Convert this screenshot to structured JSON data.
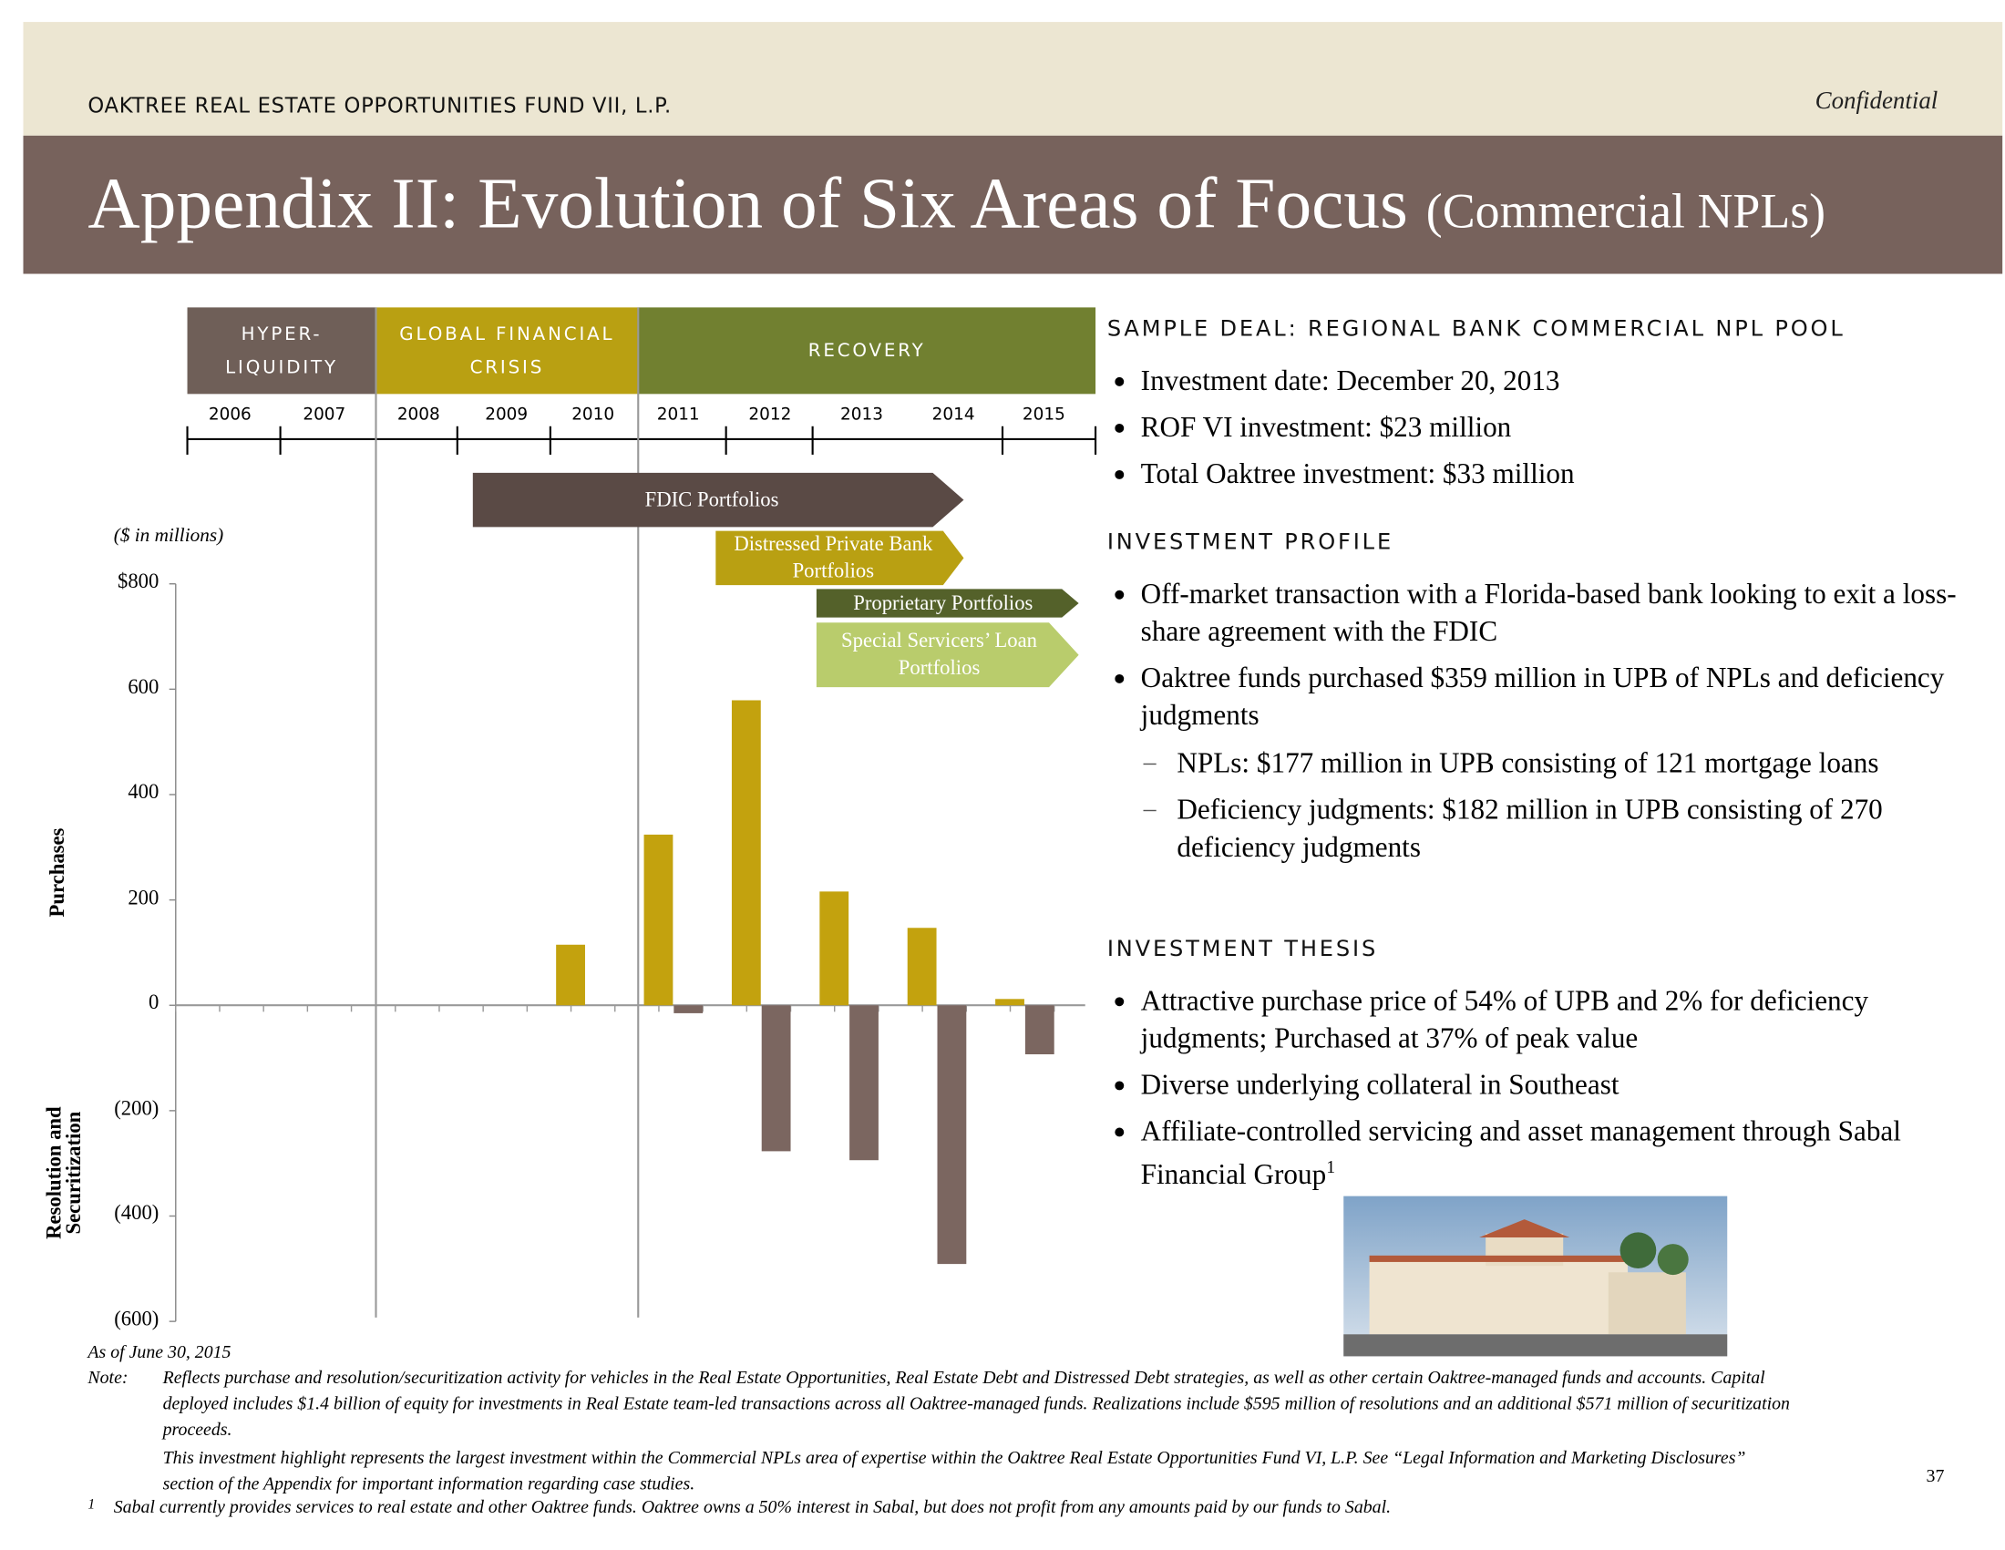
{
  "header": {
    "fund": "OAKTREE REAL ESTATE OPPORTUNITIES FUND VII, L.P.",
    "confidential": "Confidential"
  },
  "title": {
    "main": "Appendix II: Evolution of Six Areas of Focus",
    "sub": "(Commercial NPLs)"
  },
  "timeline": {
    "eras": [
      "HYPER-LIQUIDITY",
      "GLOBAL FINANCIAL CRISIS",
      "RECOVERY"
    ],
    "programs": [
      "FDIC Portfolios",
      "Distressed Private Bank Portfolios",
      "Proprietary Portfolios",
      "Special Servicers’ Loan Portfolios"
    ]
  },
  "chart_data": {
    "type": "bar",
    "unit_label": "($ in millions)",
    "categories": [
      "2006",
      "2007",
      "2008",
      "2009",
      "2010",
      "2011",
      "2012",
      "2013",
      "2014",
      "2015"
    ],
    "series": [
      {
        "name": "Purchases",
        "color": "#c3a20e",
        "values": [
          null,
          null,
          null,
          null,
          115,
          324,
          579,
          216,
          147,
          12
        ]
      },
      {
        "name": "Resolution and Securitization",
        "color": "#7b6660",
        "values": [
          null,
          null,
          null,
          null,
          null,
          -15,
          -277,
          -294,
          -491,
          -93
        ]
      }
    ],
    "ylim": [
      -600,
      800
    ],
    "yticks": [
      {
        "value": 800,
        "label": "$800"
      },
      600,
      400,
      200,
      0,
      {
        "value": -200,
        "label": "(200)"
      },
      {
        "value": -400,
        "label": "(400)"
      },
      {
        "value": -600,
        "label": "(600)"
      }
    ]
  },
  "sample_deal": {
    "heading": "SAMPLE DEAL: REGIONAL BANK COMMERCIAL NPL POOL",
    "bullets": [
      "Investment date: December 20, 2013",
      "ROF VI investment: $23 million",
      "Total Oaktree investment: $33 million"
    ]
  },
  "investment_profile": {
    "heading": "INVESTMENT PROFILE",
    "bullets": [
      {
        "text": "Off-market transaction with a Florida-based bank looking to exit a loss-share agreement with the FDIC"
      },
      {
        "text": "Oaktree funds purchased $359 million in UPB of NPLs and deficiency judgments",
        "sub": [
          "NPLs: $177 million in UPB consisting of 121 mortgage loans",
          "Deficiency judgments: $182 million in UPB consisting of 270 deficiency judgments"
        ]
      }
    ]
  },
  "investment_thesis": {
    "heading": "INVESTMENT THESIS",
    "bullets": [
      "Attractive purchase price of 54% of UPB and 2% for deficiency judgments; Purchased at 37% of peak value",
      "Diverse underlying collateral in Southeast",
      "Affiliate-controlled servicing and asset management through Sabal Financial Group"
    ],
    "footnote_ref": "1"
  },
  "footer": {
    "as_of": "As of June 30, 2015",
    "note_label": "Note:",
    "note": "Reflects purchase and resolution/securitization activity for vehicles in the Real Estate Opportunities, Real Estate Debt and Distressed Debt strategies, as well as other certain Oaktree-managed funds and accounts.  Capital deployed includes $1.4 billion of equity for investments in Real Estate team-led transactions across all Oaktree-managed funds.  Realizations include $595 million of resolutions and an additional $571 million of securitization proceeds.",
    "highlight": "This investment highlight represents the largest investment within the Commercial NPLs area of expertise within the Oaktree Real Estate Opportunities Fund VI, L.P. See “Legal Information and Marketing Disclosures” section of the Appendix for important information regarding case studies.",
    "footnote_marker": "1",
    "footnote": "Sabal currently provides services to real estate and other Oaktree funds.  Oaktree owns a 50% interest in Sabal, but does not profit from any amounts paid by our funds to Sabal.",
    "page_number": "37"
  }
}
